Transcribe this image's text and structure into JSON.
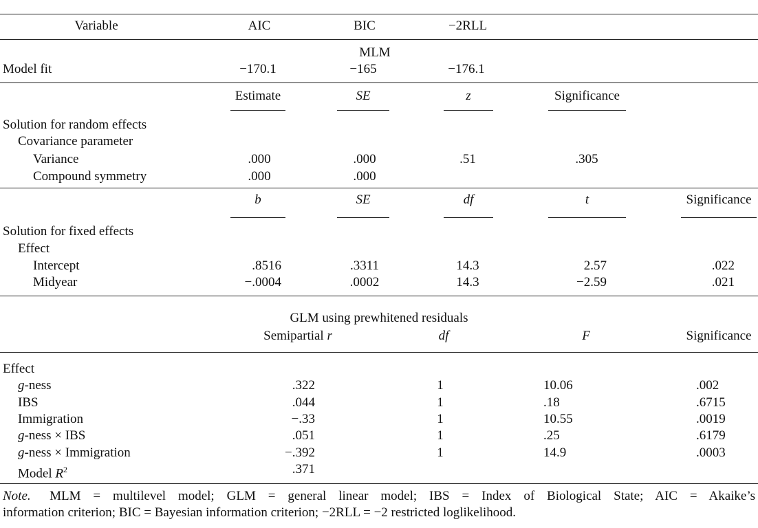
{
  "table": {
    "header": [
      "Variable",
      "AIC",
      "BIC",
      "−2RLL"
    ],
    "mlm": {
      "title": "MLM",
      "rows": [
        [
          "Model fit",
          "−170.1",
          "−165",
          "−176.1"
        ]
      ]
    },
    "random_effects": {
      "columns": [
        "Estimate",
        {
          "text": "SE",
          "italic": true
        },
        {
          "text": "z",
          "italic": true
        },
        "Significance"
      ],
      "rows": [
        [
          "Solution for random effects"
        ],
        [
          "Covariance parameter"
        ],
        [
          "Variance",
          ".000",
          ".000",
          ".51",
          ".305"
        ],
        [
          "Compound symmetry",
          ".000",
          ".000"
        ]
      ]
    },
    "fixed_effects": {
      "columns": [
        {
          "text": "b",
          "italic": true
        },
        {
          "text": "SE",
          "italic": true
        },
        {
          "text": "df",
          "italic": true
        },
        {
          "text": "t",
          "italic": true
        },
        "Significance"
      ],
      "rows": [
        [
          "Solution for fixed effects"
        ],
        [
          "Effect"
        ],
        [
          "Intercept",
          ".8516",
          ".3311",
          "14.3",
          "2.57",
          ".022"
        ],
        [
          "Midyear",
          "−.0004",
          ".0002",
          "14.3",
          "−2.59",
          ".021"
        ]
      ]
    },
    "glm": {
      "title": "GLM using prewhitened residuals",
      "columns": [
        [
          {
            "text": "Semipartial "
          },
          {
            "text": "r",
            "italic": true
          }
        ],
        {
          "text": "df",
          "italic": true
        },
        {
          "text": "F",
          "italic": true
        },
        "Significance"
      ],
      "rows": [
        [
          "Effect"
        ],
        [
          [
            {
              "text": "g",
              "italic": true
            },
            {
              "text": "-ness"
            }
          ],
          ".322",
          "1",
          "10.06",
          ".002"
        ],
        [
          "IBS",
          ".044",
          "1",
          ".18",
          ".6715"
        ],
        [
          "Immigration",
          "−.33",
          "1",
          "10.55",
          ".0019"
        ],
        [
          [
            {
              "text": "g",
              "italic": true
            },
            {
              "text": "-ness × IBS"
            }
          ],
          ".051",
          "1",
          ".25",
          ".6179"
        ],
        [
          [
            {
              "text": "g",
              "italic": true
            },
            {
              "text": "-ness × Immigration"
            }
          ],
          "−.392",
          "1",
          "14.9",
          ".0003"
        ],
        [
          [
            {
              "text": "Model "
            },
            {
              "text": "R",
              "italic": true
            },
            {
              "text": "2",
              "sup": true
            }
          ],
          ".371"
        ]
      ]
    }
  },
  "note": {
    "label": "Note.",
    "lines": [
      "MLM = multilevel model; GLM = general linear model; IBS = Index of Biological State; AIC = Akaike’s",
      "information criterion; BIC = Bayesian information criterion; −2RLL = −2 restricted loglikelihood."
    ]
  }
}
